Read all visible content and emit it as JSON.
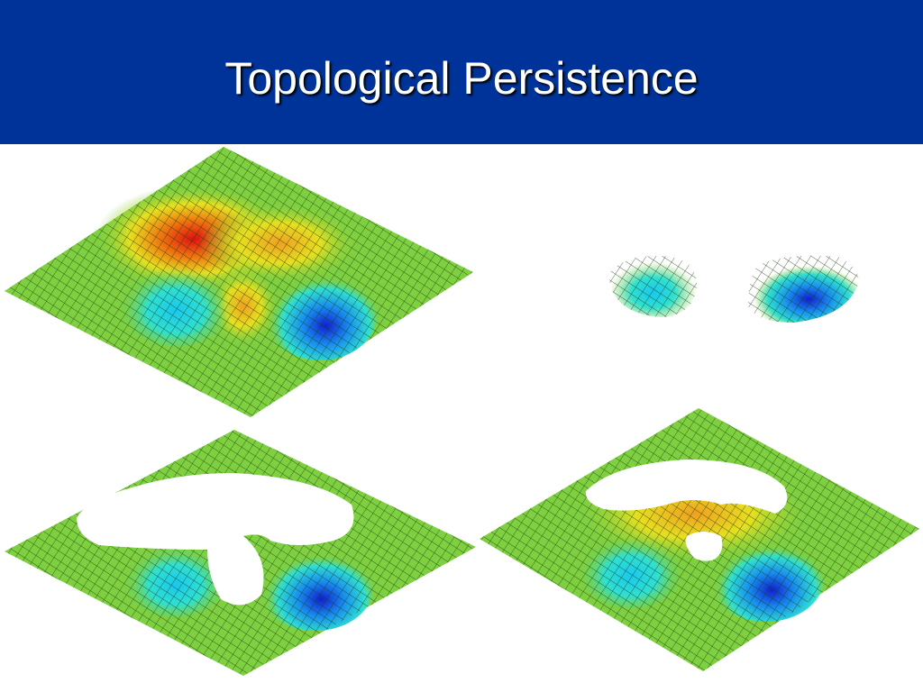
{
  "header": {
    "title": "Topological Persistence"
  }
}
